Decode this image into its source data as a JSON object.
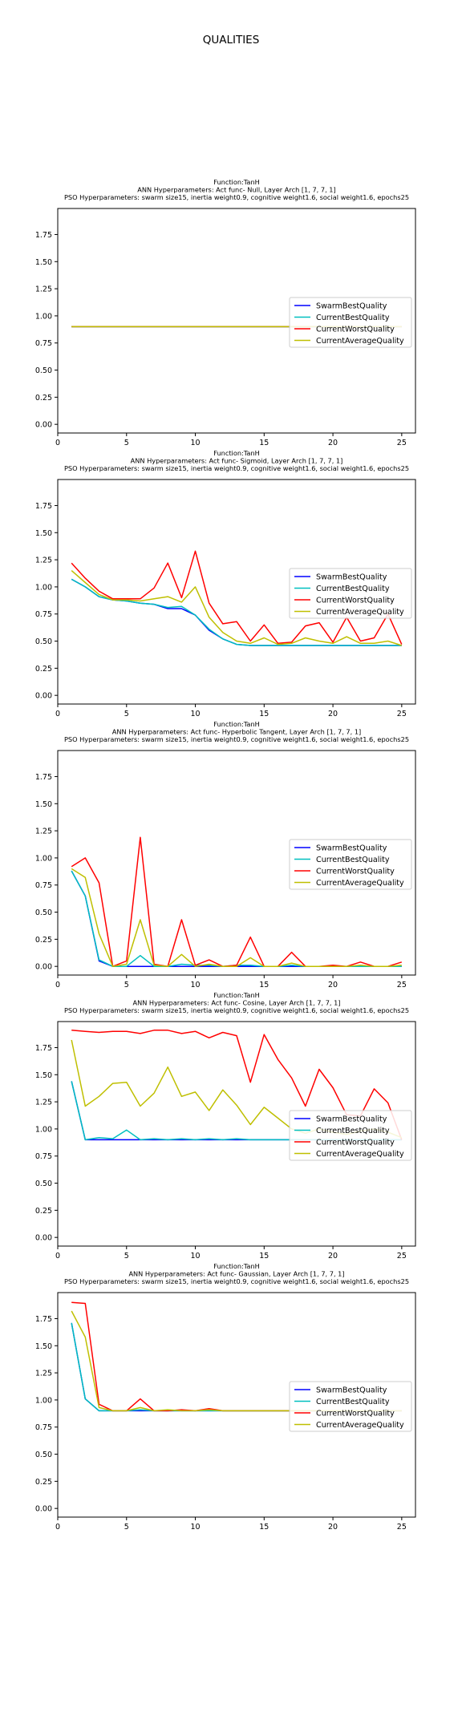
{
  "figure": {
    "suptitle": "QUALITIES"
  },
  "chart_data": [
    {
      "type": "line",
      "title_lines": [
        "Function:TanH",
        "ANN Hyperparameters: Act func- Null, Layer Arch [1, 7, 7, 1]",
        "PSO Hyperparameters: swarm size15, inertia weight0.9, cognitive weight1.6, social weight1.6, epochs25"
      ],
      "x": [
        1,
        2,
        3,
        4,
        5,
        6,
        7,
        8,
        9,
        10,
        11,
        12,
        13,
        14,
        15,
        16,
        17,
        18,
        19,
        20,
        21,
        22,
        23,
        24,
        25
      ],
      "xlim": [
        0,
        26
      ],
      "ylim": [
        -0.08,
        1.99
      ],
      "xticks": [
        0,
        5,
        10,
        15,
        20,
        25
      ],
      "xtick_labels": [
        "0",
        "5",
        "10",
        "15",
        "20",
        "25"
      ],
      "yticks": [
        0,
        0.25,
        0.5,
        0.75,
        1.0,
        1.25,
        1.5,
        1.75
      ],
      "ytick_labels": [
        "0.00",
        "0.25",
        "0.50",
        "0.75",
        "1.00",
        "1.25",
        "1.50",
        "1.75"
      ],
      "legend_position": "center-right",
      "series": [
        {
          "name": "SwarmBestQuality",
          "color": "#0000ff",
          "values": [
            0.9,
            0.9,
            0.9,
            0.9,
            0.9,
            0.9,
            0.9,
            0.9,
            0.9,
            0.9,
            0.9,
            0.9,
            0.9,
            0.9,
            0.9,
            0.9,
            0.9,
            0.9,
            0.9,
            0.9,
            0.9,
            0.9,
            0.9,
            0.9,
            0.9
          ]
        },
        {
          "name": "CurrentBestQuality",
          "color": "#00bfbf",
          "values": [
            0.9,
            0.9,
            0.9,
            0.9,
            0.9,
            0.9,
            0.9,
            0.9,
            0.9,
            0.9,
            0.9,
            0.9,
            0.9,
            0.9,
            0.9,
            0.9,
            0.9,
            0.9,
            0.9,
            0.9,
            0.9,
            0.9,
            0.9,
            0.9,
            0.9
          ]
        },
        {
          "name": "CurrentWorstQuality",
          "color": "#ff0000",
          "values": [
            0.9,
            0.9,
            0.9,
            0.9,
            0.9,
            0.9,
            0.9,
            0.9,
            0.9,
            0.9,
            0.9,
            0.9,
            0.9,
            0.9,
            0.9,
            0.9,
            0.9,
            0.9,
            0.9,
            0.9,
            0.9,
            0.9,
            0.9,
            0.9,
            0.9
          ]
        },
        {
          "name": "CurrentAverageQuality",
          "color": "#bfbf00",
          "values": [
            0.9,
            0.9,
            0.9,
            0.9,
            0.9,
            0.9,
            0.9,
            0.9,
            0.9,
            0.9,
            0.9,
            0.9,
            0.9,
            0.9,
            0.9,
            0.9,
            0.9,
            0.9,
            0.9,
            0.9,
            0.9,
            0.9,
            0.9,
            0.9,
            0.9
          ]
        }
      ]
    },
    {
      "type": "line",
      "title_lines": [
        "Function:TanH",
        "ANN Hyperparameters: Act func- Sigmoid, Layer Arch [1, 7, 7, 1]",
        "PSO Hyperparameters: swarm size15, inertia weight0.9, cognitive weight1.6, social weight1.6, epochs25"
      ],
      "x": [
        1,
        2,
        3,
        4,
        5,
        6,
        7,
        8,
        9,
        10,
        11,
        12,
        13,
        14,
        15,
        16,
        17,
        18,
        19,
        20,
        21,
        22,
        23,
        24,
        25
      ],
      "xlim": [
        0,
        26
      ],
      "ylim": [
        -0.08,
        1.99
      ],
      "xticks": [
        0,
        5,
        10,
        15,
        20,
        25
      ],
      "xtick_labels": [
        "0",
        "5",
        "10",
        "15",
        "20",
        "25"
      ],
      "yticks": [
        0,
        0.25,
        0.5,
        0.75,
        1.0,
        1.25,
        1.5,
        1.75
      ],
      "ytick_labels": [
        "0.00",
        "0.25",
        "0.50",
        "0.75",
        "1.00",
        "1.25",
        "1.50",
        "1.75"
      ],
      "legend_position": "center-right",
      "series": [
        {
          "name": "SwarmBestQuality",
          "color": "#0000ff",
          "values": [
            1.07,
            1.0,
            0.91,
            0.88,
            0.87,
            0.85,
            0.84,
            0.8,
            0.8,
            0.74,
            0.6,
            0.52,
            0.47,
            0.46,
            0.46,
            0.46,
            0.46,
            0.46,
            0.46,
            0.46,
            0.46,
            0.46,
            0.46,
            0.46,
            0.46
          ]
        },
        {
          "name": "CurrentBestQuality",
          "color": "#00bfbf",
          "values": [
            1.07,
            1.0,
            0.91,
            0.88,
            0.87,
            0.85,
            0.84,
            0.81,
            0.82,
            0.74,
            0.61,
            0.52,
            0.47,
            0.46,
            0.46,
            0.46,
            0.46,
            0.46,
            0.46,
            0.46,
            0.46,
            0.46,
            0.46,
            0.46,
            0.46
          ]
        },
        {
          "name": "CurrentWorstQuality",
          "color": "#ff0000",
          "values": [
            1.22,
            1.08,
            0.96,
            0.89,
            0.89,
            0.89,
            0.99,
            1.22,
            0.9,
            1.33,
            0.85,
            0.66,
            0.68,
            0.5,
            0.65,
            0.48,
            0.49,
            0.64,
            0.67,
            0.49,
            0.72,
            0.5,
            0.53,
            0.75,
            0.47
          ]
        },
        {
          "name": "CurrentAverageQuality",
          "color": "#bfbf00",
          "values": [
            1.15,
            1.04,
            0.93,
            0.88,
            0.88,
            0.87,
            0.89,
            0.91,
            0.86,
            1.0,
            0.72,
            0.58,
            0.5,
            0.48,
            0.53,
            0.47,
            0.48,
            0.53,
            0.5,
            0.48,
            0.54,
            0.48,
            0.48,
            0.5,
            0.46
          ]
        }
      ]
    },
    {
      "type": "line",
      "title_lines": [
        "Function:TanH",
        "ANN Hyperparameters: Act func- Hyperbolic Tangent, Layer Arch [1, 7, 7, 1]",
        "PSO Hyperparameters: swarm size15, inertia weight0.9, cognitive weight1.6, social weight1.6, epochs25"
      ],
      "x": [
        1,
        2,
        3,
        4,
        5,
        6,
        7,
        8,
        9,
        10,
        11,
        12,
        13,
        14,
        15,
        16,
        17,
        18,
        19,
        20,
        21,
        22,
        23,
        24,
        25
      ],
      "xlim": [
        0,
        26
      ],
      "ylim": [
        -0.08,
        1.99
      ],
      "xticks": [
        0,
        5,
        10,
        15,
        20,
        25
      ],
      "xtick_labels": [
        "0",
        "5",
        "10",
        "15",
        "20",
        "25"
      ],
      "yticks": [
        0,
        0.25,
        0.5,
        0.75,
        1.0,
        1.25,
        1.5,
        1.75
      ],
      "ytick_labels": [
        "0.00",
        "0.25",
        "0.50",
        "0.75",
        "1.00",
        "1.25",
        "1.50",
        "1.75"
      ],
      "legend_position": "center-right",
      "series": [
        {
          "name": "SwarmBestQuality",
          "color": "#0000ff",
          "values": [
            0.88,
            0.65,
            0.05,
            0.0,
            0.0,
            0.0,
            0.0,
            0.0,
            0.0,
            0.0,
            0.0,
            0.0,
            0.0,
            0.0,
            0.0,
            0.0,
            0.0,
            0.0,
            0.0,
            0.0,
            0.0,
            0.0,
            0.0,
            0.0,
            0.0
          ]
        },
        {
          "name": "CurrentBestQuality",
          "color": "#00bfbf",
          "values": [
            0.88,
            0.65,
            0.06,
            0.0,
            0.0,
            0.1,
            0.0,
            0.0,
            0.02,
            0.01,
            0.01,
            0.0,
            0.01,
            0.01,
            0.0,
            0.0,
            0.01,
            0.0,
            0.0,
            0.0,
            0.0,
            0.0,
            0.0,
            0.0,
            0.0
          ]
        },
        {
          "name": "CurrentWorstQuality",
          "color": "#ff0000",
          "values": [
            0.92,
            1.0,
            0.77,
            0.0,
            0.05,
            1.19,
            0.02,
            0.0,
            0.43,
            0.01,
            0.06,
            0.0,
            0.01,
            0.27,
            0.0,
            0.0,
            0.13,
            0.0,
            0.0,
            0.01,
            0.0,
            0.04,
            0.0,
            0.0,
            0.04
          ]
        },
        {
          "name": "CurrentAverageQuality",
          "color": "#bfbf00",
          "values": [
            0.9,
            0.82,
            0.3,
            0.0,
            0.02,
            0.43,
            0.01,
            0.0,
            0.11,
            0.0,
            0.02,
            0.0,
            0.0,
            0.08,
            0.0,
            0.0,
            0.03,
            0.0,
            0.0,
            0.0,
            0.0,
            0.01,
            0.0,
            0.0,
            0.01
          ]
        }
      ]
    },
    {
      "type": "line",
      "title_lines": [
        "Function:TanH",
        "ANN Hyperparameters: Act func- Cosine, Layer Arch [1, 7, 7, 1]",
        "PSO Hyperparameters: swarm size15, inertia weight0.9, cognitive weight1.6, social weight1.6, epochs25"
      ],
      "x": [
        1,
        2,
        3,
        4,
        5,
        6,
        7,
        8,
        9,
        10,
        11,
        12,
        13,
        14,
        15,
        16,
        17,
        18,
        19,
        20,
        21,
        22,
        23,
        24,
        25
      ],
      "xlim": [
        0,
        26
      ],
      "ylim": [
        -0.08,
        1.99
      ],
      "xticks": [
        0,
        5,
        10,
        15,
        20,
        25
      ],
      "xtick_labels": [
        "0",
        "5",
        "10",
        "15",
        "20",
        "25"
      ],
      "yticks": [
        0,
        0.25,
        0.5,
        0.75,
        1.0,
        1.25,
        1.5,
        1.75
      ],
      "ytick_labels": [
        "0.00",
        "0.25",
        "0.50",
        "0.75",
        "1.00",
        "1.25",
        "1.50",
        "1.75"
      ],
      "legend_position": "center-right",
      "series": [
        {
          "name": "SwarmBestQuality",
          "color": "#0000ff",
          "values": [
            1.44,
            0.9,
            0.9,
            0.9,
            0.9,
            0.9,
            0.9,
            0.9,
            0.9,
            0.9,
            0.9,
            0.9,
            0.9,
            0.9,
            0.9,
            0.9,
            0.9,
            0.9,
            0.9,
            0.9,
            0.9,
            0.9,
            0.9,
            0.9,
            0.9
          ]
        },
        {
          "name": "CurrentBestQuality",
          "color": "#00bfbf",
          "values": [
            1.44,
            0.9,
            0.92,
            0.91,
            0.99,
            0.9,
            0.91,
            0.9,
            0.91,
            0.9,
            0.91,
            0.9,
            0.91,
            0.9,
            0.9,
            0.9,
            0.9,
            0.9,
            0.9,
            0.9,
            0.9,
            0.9,
            0.9,
            0.9,
            0.9
          ]
        },
        {
          "name": "CurrentWorstQuality",
          "color": "#ff0000",
          "values": [
            1.91,
            1.9,
            1.89,
            1.9,
            1.9,
            1.88,
            1.91,
            1.91,
            1.88,
            1.9,
            1.84,
            1.89,
            1.86,
            1.43,
            1.87,
            1.64,
            1.47,
            1.21,
            1.55,
            1.38,
            1.13,
            1.12,
            1.37,
            1.24,
            0.9
          ]
        },
        {
          "name": "CurrentAverageQuality",
          "color": "#bfbf00",
          "values": [
            1.82,
            1.21,
            1.3,
            1.42,
            1.43,
            1.21,
            1.33,
            1.57,
            1.3,
            1.34,
            1.17,
            1.36,
            1.22,
            1.04,
            1.2,
            1.1,
            1.0,
            0.96,
            1.0,
            0.97,
            0.95,
            0.98,
            1.0,
            0.97,
            0.92
          ]
        }
      ]
    },
    {
      "type": "line",
      "title_lines": [
        "Function:TanH",
        "ANN Hyperparameters: Act func- Gaussian, Layer Arch [1, 7, 7, 1]",
        "PSO Hyperparameters: swarm size15, inertia weight0.9, cognitive weight1.6, social weight1.6, epochs25"
      ],
      "x": [
        1,
        2,
        3,
        4,
        5,
        6,
        7,
        8,
        9,
        10,
        11,
        12,
        13,
        14,
        15,
        16,
        17,
        18,
        19,
        20,
        21,
        22,
        23,
        24,
        25
      ],
      "xlim": [
        0,
        26
      ],
      "ylim": [
        -0.08,
        1.99
      ],
      "xticks": [
        0,
        5,
        10,
        15,
        20,
        25
      ],
      "xtick_labels": [
        "0",
        "5",
        "10",
        "15",
        "20",
        "25"
      ],
      "yticks": [
        0,
        0.25,
        0.5,
        0.75,
        1.0,
        1.25,
        1.5,
        1.75
      ],
      "ytick_labels": [
        "0.00",
        "0.25",
        "0.50",
        "0.75",
        "1.00",
        "1.25",
        "1.50",
        "1.75"
      ],
      "legend_position": "center-right",
      "series": [
        {
          "name": "SwarmBestQuality",
          "color": "#0000ff",
          "values": [
            1.71,
            1.01,
            0.9,
            0.9,
            0.9,
            0.9,
            0.9,
            0.9,
            0.9,
            0.9,
            0.9,
            0.9,
            0.9,
            0.9,
            0.9,
            0.9,
            0.9,
            0.9,
            0.9,
            0.9,
            0.9,
            0.9,
            0.9,
            0.9,
            0.9
          ]
        },
        {
          "name": "CurrentBestQuality",
          "color": "#00bfbf",
          "values": [
            1.71,
            1.01,
            0.9,
            0.9,
            0.9,
            0.91,
            0.9,
            0.9,
            0.9,
            0.9,
            0.9,
            0.9,
            0.9,
            0.9,
            0.9,
            0.9,
            0.9,
            0.9,
            0.9,
            0.9,
            0.9,
            0.9,
            0.9,
            0.9,
            0.9
          ]
        },
        {
          "name": "CurrentWorstQuality",
          "color": "#ff0000",
          "values": [
            1.9,
            1.89,
            0.96,
            0.9,
            0.9,
            1.01,
            0.9,
            0.9,
            0.91,
            0.9,
            0.92,
            0.9,
            0.9,
            0.9,
            0.9,
            0.9,
            0.9,
            0.9,
            0.9,
            0.9,
            0.9,
            0.9,
            0.9,
            0.9,
            0.9
          ]
        },
        {
          "name": "CurrentAverageQuality",
          "color": "#bfbf00",
          "values": [
            1.82,
            1.58,
            0.93,
            0.9,
            0.9,
            0.93,
            0.9,
            0.91,
            0.9,
            0.9,
            0.91,
            0.9,
            0.9,
            0.9,
            0.9,
            0.9,
            0.9,
            0.9,
            0.9,
            0.9,
            0.9,
            0.9,
            0.9,
            0.9,
            0.9
          ]
        }
      ]
    }
  ]
}
